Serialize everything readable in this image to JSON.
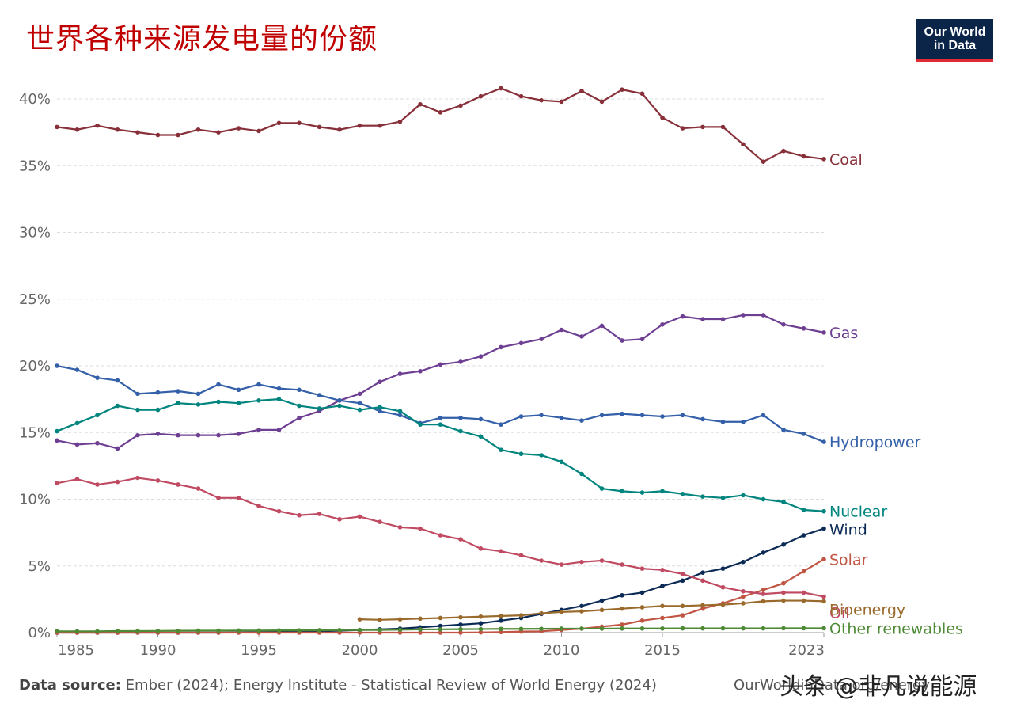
{
  "title": "世界各种来源发电量的份额",
  "logo": {
    "line1": "Our World",
    "line2": "in Data"
  },
  "source": {
    "label": "Data source:",
    "text": " Ember (2024); Energy Institute - Statistical Review of World Energy (2024)"
  },
  "credit": "OurWorldinData.org/energy",
  "watermark": "头条 @非凡说能源",
  "chart_data": {
    "type": "line",
    "title": "世界各种来源发电量的份额",
    "xlabel": "",
    "ylabel": "",
    "xlim": [
      1985,
      2023
    ],
    "ylim": [
      0,
      40
    ],
    "x_ticks": [
      1985,
      1990,
      1995,
      2000,
      2005,
      2010,
      2015,
      2023
    ],
    "y_ticks": [
      0,
      5,
      10,
      15,
      20,
      25,
      30,
      35,
      40
    ],
    "y_tick_labels": [
      "0%",
      "5%",
      "10%",
      "15%",
      "20%",
      "25%",
      "30%",
      "35%",
      "40%"
    ],
    "grid": "horizontal dashed",
    "legend": "inline labels at line ends",
    "series": [
      {
        "name": "Coal",
        "color": "#883039",
        "x_start": 1985,
        "values": [
          37.9,
          37.7,
          38.0,
          37.7,
          37.5,
          37.3,
          37.3,
          37.7,
          37.5,
          37.8,
          37.6,
          38.2,
          38.2,
          37.9,
          37.7,
          38.0,
          38.0,
          38.3,
          39.6,
          39.0,
          39.5,
          40.2,
          40.8,
          40.2,
          39.9,
          39.8,
          40.6,
          39.8,
          40.7,
          40.4,
          38.6,
          37.8,
          37.9,
          37.9,
          36.6,
          35.3,
          36.1,
          35.7,
          35.5
        ]
      },
      {
        "name": "Gas",
        "color": "#6d3e91",
        "x_start": 1985,
        "values": [
          14.4,
          14.1,
          14.2,
          13.8,
          14.8,
          14.9,
          14.8,
          14.8,
          14.8,
          14.9,
          15.2,
          15.2,
          16.1,
          16.6,
          17.4,
          17.9,
          18.8,
          19.4,
          19.6,
          20.1,
          20.3,
          20.7,
          21.4,
          21.7,
          22.0,
          22.7,
          22.2,
          23.0,
          21.9,
          22.0,
          23.1,
          23.7,
          23.5,
          23.5,
          23.8,
          23.8,
          23.1,
          22.8,
          22.5
        ]
      },
      {
        "name": "Hydropower",
        "color": "#3360a9",
        "x_start": 1985,
        "values": [
          20.0,
          19.7,
          19.1,
          18.9,
          17.9,
          18.0,
          18.1,
          17.9,
          18.6,
          18.2,
          18.6,
          18.3,
          18.2,
          17.8,
          17.4,
          17.2,
          16.6,
          16.3,
          15.7,
          16.1,
          16.1,
          16.0,
          15.6,
          16.2,
          16.3,
          16.1,
          15.9,
          16.3,
          16.4,
          16.3,
          16.2,
          16.3,
          16.0,
          15.8,
          15.8,
          16.3,
          15.2,
          14.9,
          14.3
        ]
      },
      {
        "name": "Nuclear",
        "color": "#00847e",
        "x_start": 1985,
        "values": [
          15.1,
          15.7,
          16.3,
          17.0,
          16.7,
          16.7,
          17.2,
          17.1,
          17.3,
          17.2,
          17.4,
          17.5,
          17.0,
          16.8,
          17.0,
          16.7,
          16.9,
          16.6,
          15.6,
          15.6,
          15.1,
          14.7,
          13.7,
          13.4,
          13.3,
          12.8,
          11.9,
          10.8,
          10.6,
          10.5,
          10.6,
          10.4,
          10.2,
          10.1,
          10.3,
          10.0,
          9.8,
          9.2,
          9.1
        ]
      },
      {
        "name": "Wind",
        "color": "#0b2a55",
        "x_start": 1985,
        "values": [
          0,
          0,
          0,
          0,
          0,
          0,
          0,
          0,
          0,
          0.02,
          0.03,
          0.05,
          0.07,
          0.1,
          0.15,
          0.2,
          0.25,
          0.3,
          0.4,
          0.5,
          0.6,
          0.7,
          0.9,
          1.1,
          1.4,
          1.7,
          2.0,
          2.4,
          2.8,
          3.0,
          3.5,
          3.9,
          4.5,
          4.8,
          5.3,
          6.0,
          6.6,
          7.3,
          7.8
        ]
      },
      {
        "name": "Solar",
        "color": "#c15543",
        "x_start": 1985,
        "values": [
          0,
          0,
          0,
          0,
          0,
          0,
          0,
          0,
          0,
          0,
          0,
          0,
          0,
          0,
          0,
          0,
          0,
          0,
          0,
          0,
          0,
          0.02,
          0.04,
          0.08,
          0.1,
          0.2,
          0.3,
          0.45,
          0.6,
          0.9,
          1.1,
          1.3,
          1.8,
          2.2,
          2.7,
          3.2,
          3.7,
          4.6,
          5.5
        ]
      },
      {
        "name": "Oil",
        "color": "#c04a62",
        "x_start": 1985,
        "values": [
          11.2,
          11.5,
          11.1,
          11.3,
          11.6,
          11.4,
          11.1,
          10.8,
          10.1,
          10.1,
          9.5,
          9.1,
          8.8,
          8.9,
          8.5,
          8.7,
          8.3,
          7.9,
          7.8,
          7.3,
          7.0,
          6.3,
          6.1,
          5.8,
          5.4,
          5.1,
          5.3,
          5.4,
          5.1,
          4.8,
          4.7,
          4.4,
          3.9,
          3.4,
          3.1,
          2.9,
          3.0,
          3.0,
          2.7
        ]
      },
      {
        "name": "Bioenergy",
        "color": "#9a6a2c",
        "x_start": 2000,
        "values": [
          1.0,
          0.96,
          1.0,
          1.05,
          1.1,
          1.15,
          1.2,
          1.25,
          1.3,
          1.45,
          1.55,
          1.6,
          1.7,
          1.8,
          1.9,
          2.0,
          2.0,
          2.05,
          2.1,
          2.2,
          2.35,
          2.4,
          2.4,
          2.35
        ]
      },
      {
        "name": "Other renewables",
        "color": "#4e8a35",
        "x_start": 1985,
        "values": [
          0.1,
          0.1,
          0.1,
          0.12,
          0.12,
          0.13,
          0.14,
          0.15,
          0.15,
          0.16,
          0.16,
          0.17,
          0.17,
          0.18,
          0.19,
          0.2,
          0.2,
          0.22,
          0.24,
          0.25,
          0.26,
          0.27,
          0.28,
          0.28,
          0.29,
          0.3,
          0.3,
          0.3,
          0.31,
          0.31,
          0.31,
          0.32,
          0.32,
          0.32,
          0.32,
          0.32,
          0.33,
          0.33,
          0.33
        ]
      }
    ]
  }
}
